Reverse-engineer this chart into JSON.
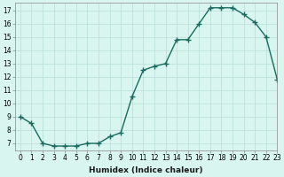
{
  "x": [
    0,
    1,
    2,
    3,
    4,
    5,
    6,
    7,
    8,
    9,
    10,
    11,
    12,
    13,
    14,
    15,
    16,
    17,
    18,
    19,
    20,
    21,
    22,
    23
  ],
  "y": [
    9,
    8.5,
    7,
    6.8,
    6.8,
    6.8,
    7,
    7,
    7.5,
    7.8,
    10.5,
    12.5,
    12.8,
    13,
    14.8,
    14.8,
    16,
    17.2,
    17.2,
    17.2,
    16.7,
    16.1,
    15,
    11.8
  ],
  "line_color": "#1a6b5e",
  "marker": "+",
  "marker_size": 4,
  "bg_color": "#d8f5f0",
  "grid_color": "#b8ddd8",
  "xlabel": "Humidex (Indice chaleur)",
  "xlim": [
    -0.5,
    23
  ],
  "ylim": [
    6.5,
    17.6
  ],
  "xticks": [
    0,
    1,
    2,
    3,
    4,
    5,
    6,
    7,
    8,
    9,
    10,
    11,
    12,
    13,
    14,
    15,
    16,
    17,
    18,
    19,
    20,
    21,
    22,
    23
  ],
  "yticks": [
    7,
    8,
    9,
    10,
    11,
    12,
    13,
    14,
    15,
    16,
    17
  ],
  "xtick_labels": [
    "0",
    "1",
    "2",
    "3",
    "4",
    "5",
    "6",
    "7",
    "8",
    "9",
    "10",
    "11",
    "12",
    "13",
    "14",
    "15",
    "16",
    "17",
    "18",
    "19",
    "20",
    "21",
    "22",
    "23"
  ],
  "ytick_labels": [
    "7",
    "8",
    "9",
    "10",
    "11",
    "12",
    "13",
    "14",
    "15",
    "16",
    "17"
  ],
  "xlabel_fontsize": 6.5,
  "tick_fontsize": 5.5,
  "linewidth": 1.0
}
